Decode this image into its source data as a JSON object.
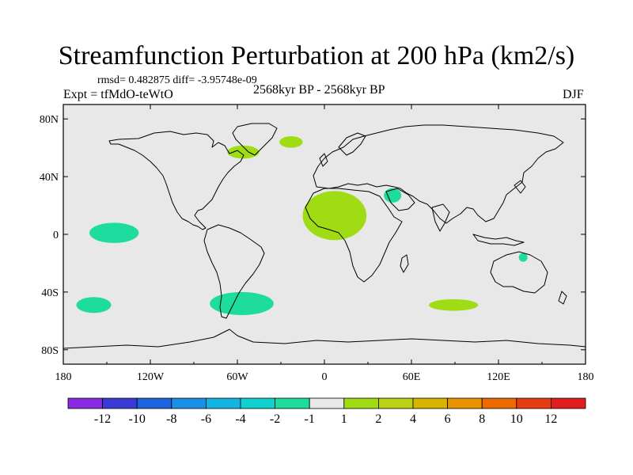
{
  "chart_data": {
    "type": "heatmap",
    "title": "Streamfunction Perturbation at 200 hPa (km2/s)",
    "stats": "rmsd= 0.482875 diff= -3.95748e-09",
    "experiment": "Expt = tfMdO-teWtO",
    "period": "2568kyr BP - 2568kyr BP",
    "season": "DJF",
    "map": "world coastlines, cylindrical equidistant",
    "lon_range": [
      -180,
      180
    ],
    "lat_range": [
      -90,
      90
    ],
    "x_ticks": [
      {
        "lon": -180,
        "label": "180"
      },
      {
        "lon": -120,
        "label": "120W"
      },
      {
        "lon": -60,
        "label": "60W"
      },
      {
        "lon": 0,
        "label": "0"
      },
      {
        "lon": 60,
        "label": "60E"
      },
      {
        "lon": 120,
        "label": "120E"
      },
      {
        "lon": 180,
        "label": "180"
      }
    ],
    "y_ticks": [
      {
        "lat": 80,
        "label": "80N"
      },
      {
        "lat": 40,
        "label": "40N"
      },
      {
        "lat": 0,
        "label": "0"
      },
      {
        "lat": -40,
        "label": "40S"
      },
      {
        "lat": -80,
        "label": "80S"
      }
    ],
    "colorbar": {
      "levels": [
        "-12",
        "-10",
        "-8",
        "-6",
        "-4",
        "-2",
        "-1",
        "1",
        "2",
        "4",
        "6",
        "8",
        "10",
        "12"
      ],
      "colors": [
        "#8a2be2",
        "#3a3ad6",
        "#1e64e0",
        "#1a8fe6",
        "#14b4e2",
        "#10d0d0",
        "#1edc9e",
        "#e8e8e8",
        "#a0dc14",
        "#bcd214",
        "#d8b400",
        "#e89400",
        "#ec6a00",
        "#e63c14",
        "#e01e1e"
      ]
    },
    "anomalies": [
      {
        "name": "north-atlantic-west",
        "lon": -56,
        "lat": 57,
        "rlon": 11,
        "rlat": 4.5,
        "color": "#a0dc14"
      },
      {
        "name": "greenland-sea",
        "lon": -23,
        "lat": 64,
        "rlon": 8,
        "rlat": 4,
        "color": "#a0dc14"
      },
      {
        "name": "africa",
        "lon": 7,
        "lat": 13,
        "rlon": 22,
        "rlat": 17,
        "color": "#a0dc14"
      },
      {
        "name": "arabia",
        "lon": 47,
        "lat": 27,
        "rlon": 6,
        "rlat": 5,
        "color": "#1edc9e"
      },
      {
        "name": "central-pacific",
        "lon": -145,
        "lat": 1,
        "rlon": 17,
        "rlat": 7,
        "color": "#1edc9e"
      },
      {
        "name": "australia",
        "lon": 137,
        "lat": -16,
        "rlon": 3,
        "rlat": 3,
        "color": "#1edc9e"
      },
      {
        "name": "south-pacific",
        "lon": -159,
        "lat": -49,
        "rlon": 12,
        "rlat": 5.5,
        "color": "#1edc9e"
      },
      {
        "name": "south-atlantic-west",
        "lon": -57,
        "lat": -48,
        "rlon": 22,
        "rlat": 8,
        "color": "#1edc9e"
      },
      {
        "name": "south-indian",
        "lon": 89,
        "lat": -49,
        "rlon": 17,
        "rlat": 4,
        "color": "#a0dc14"
      }
    ]
  }
}
